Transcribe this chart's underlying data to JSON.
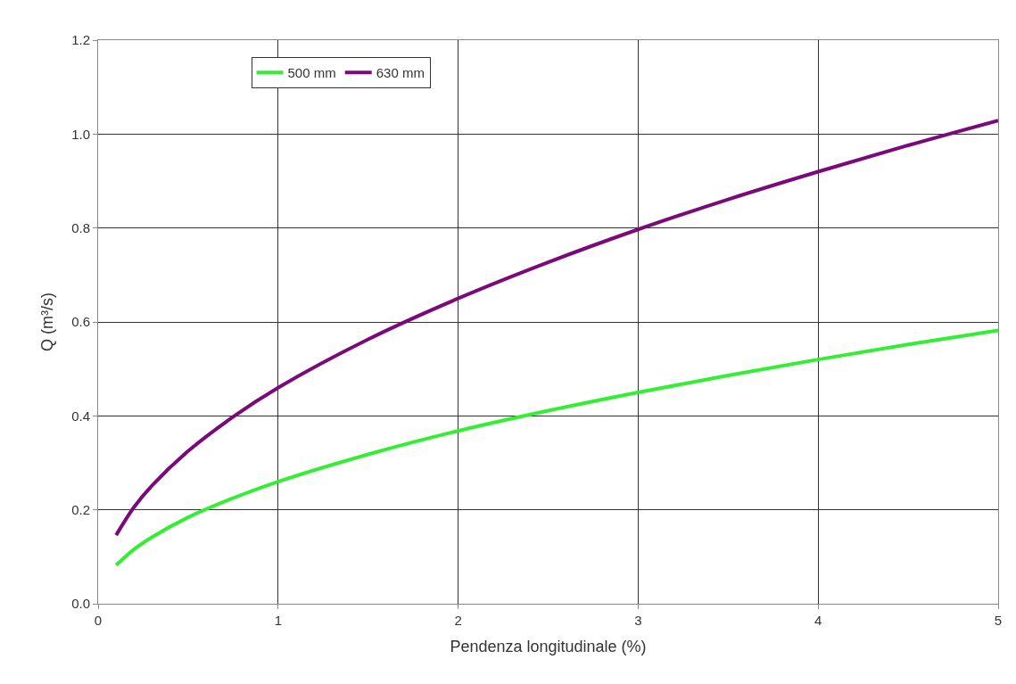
{
  "chart_data": {
    "type": "line",
    "xlabel": "Pendenza longitudinale (%)",
    "ylabel": "Q (m³/s)",
    "x": [
      0.1,
      0.2,
      0.3,
      0.5,
      0.75,
      1,
      1.5,
      2,
      2.5,
      3,
      3.5,
      4,
      4.5,
      5
    ],
    "series": [
      {
        "name": "500 mm",
        "color": "#33ee33",
        "values": [
          0.082,
          0.116,
          0.142,
          0.184,
          0.225,
          0.26,
          0.318,
          0.368,
          0.411,
          0.45,
          0.486,
          0.52,
          0.552,
          0.582
        ]
      },
      {
        "name": "630 mm",
        "color": "#7a0a7a",
        "values": [
          0.146,
          0.206,
          0.252,
          0.325,
          0.398,
          0.46,
          0.563,
          0.65,
          0.727,
          0.797,
          0.861,
          0.92,
          0.976,
          1.029
        ]
      }
    ],
    "xlim": [
      0,
      5
    ],
    "ylim": [
      0,
      1.2
    ],
    "xticks": [
      0,
      1,
      2,
      3,
      4,
      5
    ],
    "yticks": [
      {
        "value": 0,
        "label": "0.0"
      },
      {
        "value": 0.2,
        "label": "0.2"
      },
      {
        "value": 0.4,
        "label": "0.4"
      },
      {
        "value": 0.6,
        "label": "0.6"
      },
      {
        "value": 0.8,
        "label": "0.8"
      },
      {
        "value": 1.0,
        "label": "1.0"
      },
      {
        "value": 1.2,
        "label": "1.2"
      }
    ],
    "grid": true,
    "legend": "top left",
    "marker": "none",
    "line_style": "solid"
  }
}
